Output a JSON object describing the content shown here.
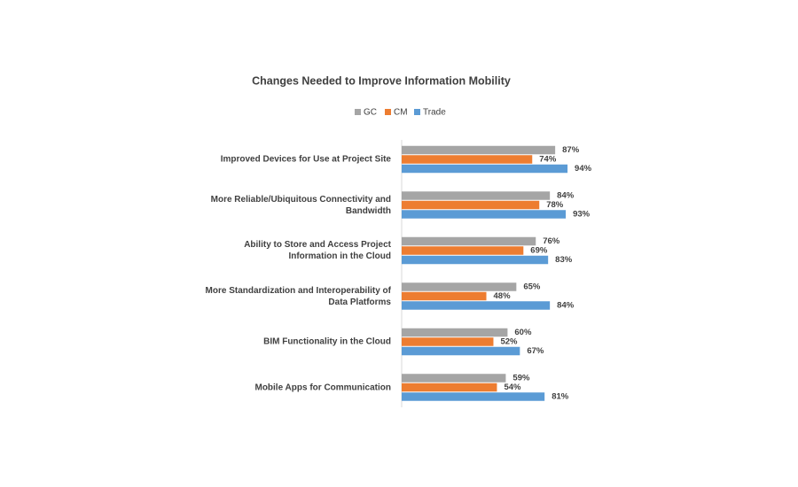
{
  "chart_data": {
    "type": "bar",
    "orientation": "horizontal",
    "title": "Changes Needed to Improve Information Mobility",
    "categories": [
      "Improved Devices for Use at Project Site",
      "More Reliable/Ubiquitous Connectivity and Bandwidth",
      "Ability to Store and Access Project Information in the Cloud",
      "More Standardization and Interoperability of Data Platforms",
      "BIM Functionality in the Cloud",
      "Mobile Apps for Communication"
    ],
    "series": [
      {
        "name": "GC",
        "color": "#a5a5a5",
        "values": [
          87,
          84,
          76,
          65,
          60,
          59
        ],
        "value_labels": [
          "87%",
          "84%",
          "76%",
          "65%",
          "60%",
          "59%"
        ]
      },
      {
        "name": "CM",
        "color": "#ed7d31",
        "values": [
          74,
          78,
          69,
          48,
          52,
          54
        ],
        "value_labels": [
          "74%",
          "78%",
          "69%",
          "48%",
          "52%",
          "54%"
        ]
      },
      {
        "name": "Trade",
        "color": "#5b9bd5",
        "values": [
          94,
          93,
          83,
          84,
          67,
          81
        ],
        "value_labels": [
          "94%",
          "93%",
          "83%",
          "84%",
          "67%",
          "81%"
        ]
      }
    ],
    "legend": "top"
  }
}
